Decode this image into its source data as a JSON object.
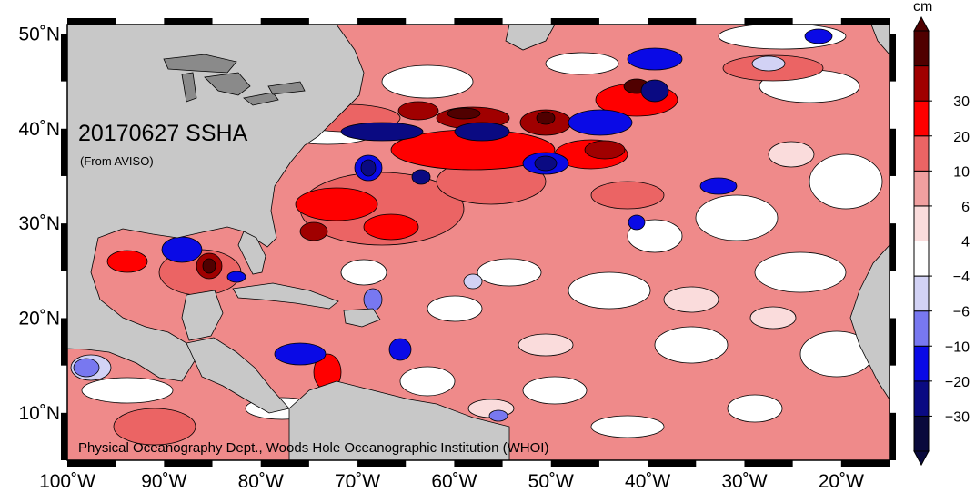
{
  "map": {
    "title": "20170627 SSHA",
    "source": "(From AVISO)",
    "credit": "Physical Oceanography Dept., Woods Hole Oceanographic Institution (WHOI)",
    "extent": {
      "lon_min": -100,
      "lon_max": -15,
      "lat_min": 5,
      "lat_max": 51
    },
    "lat_ticks": [
      {
        "value": 50,
        "label": "50˚N"
      },
      {
        "value": 40,
        "label": "40˚N"
      },
      {
        "value": 30,
        "label": "30˚N"
      },
      {
        "value": 20,
        "label": "20˚N"
      },
      {
        "value": 10,
        "label": "10˚N"
      }
    ],
    "lon_ticks": [
      {
        "value": -100,
        "label": "100˚W"
      },
      {
        "value": -90,
        "label": "90˚W"
      },
      {
        "value": -80,
        "label": "80˚W"
      },
      {
        "value": -70,
        "label": "70˚W"
      },
      {
        "value": -60,
        "label": "60˚W"
      },
      {
        "value": -50,
        "label": "50˚W"
      },
      {
        "value": -40,
        "label": "40˚W"
      },
      {
        "value": -30,
        "label": "30˚W"
      },
      {
        "value": -20,
        "label": "20˚W"
      }
    ],
    "colors": {
      "land": "#c8c8c8",
      "lakes": "#8a8a8a",
      "ocean_base": "#ef8a8a"
    }
  },
  "colorbar": {
    "unit": "cm",
    "bins": [
      {
        "color": "#0a0a3c"
      },
      {
        "color": "#0a0a82"
      },
      {
        "color": "#0a0ae6"
      },
      {
        "color": "#7878f0"
      },
      {
        "color": "#d2d2f5"
      },
      {
        "color": "#ffffff"
      },
      {
        "color": "#fadcdc"
      },
      {
        "color": "#f0a0a0"
      },
      {
        "color": "#eb6464"
      },
      {
        "color": "#ff0000"
      },
      {
        "color": "#a00000"
      },
      {
        "color": "#500000"
      }
    ],
    "labels": [
      "−30",
      "−20",
      "−10",
      "−6",
      "−4",
      "4",
      "6",
      "10",
      "20",
      "30"
    ]
  }
}
